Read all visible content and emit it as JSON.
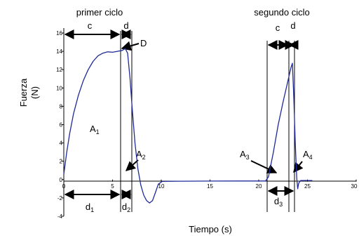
{
  "chart_data": {
    "type": "line",
    "title": "",
    "xlabel": "Tiempo (s)",
    "ylabel": "Fuerza",
    "ylabel_unit": "(N)",
    "xlim": [
      0,
      30
    ],
    "ylim": [
      -4,
      16
    ],
    "x_ticks": [
      0,
      5,
      10,
      15,
      20,
      25,
      30
    ],
    "y_ticks": [
      -4,
      -2,
      0,
      2,
      4,
      6,
      8,
      10,
      12,
      14,
      16
    ],
    "grid": false,
    "series": [
      {
        "color": "#1f2a9a",
        "points": [
          [
            0.0,
            0.6
          ],
          [
            0.3,
            3.0
          ],
          [
            0.6,
            5.0
          ],
          [
            1.0,
            7.2
          ],
          [
            1.5,
            9.2
          ],
          [
            2.0,
            10.8
          ],
          [
            2.5,
            12.0
          ],
          [
            3.0,
            12.9
          ],
          [
            3.5,
            13.5
          ],
          [
            4.0,
            13.8
          ],
          [
            4.5,
            13.95
          ],
          [
            5.0,
            13.9
          ],
          [
            5.5,
            14.0
          ],
          [
            6.0,
            14.1
          ],
          [
            6.3,
            14.3
          ],
          [
            6.55,
            13.8
          ],
          [
            6.8,
            11.0
          ],
          [
            7.0,
            8.0
          ],
          [
            7.3,
            4.0
          ],
          [
            7.6,
            1.2
          ],
          [
            7.9,
            -0.6
          ],
          [
            8.2,
            -1.7
          ],
          [
            8.5,
            -2.3
          ],
          [
            8.8,
            -2.55
          ],
          [
            9.1,
            -2.3
          ],
          [
            9.4,
            -1.4
          ],
          [
            9.7,
            -0.5
          ],
          [
            10.1,
            -0.2
          ],
          [
            12.0,
            -0.18
          ],
          [
            15.0,
            -0.16
          ],
          [
            18.0,
            -0.15
          ],
          [
            20.7,
            -0.15
          ],
          [
            21.0,
            0.3
          ],
          [
            21.5,
            3.0
          ],
          [
            22.0,
            6.0
          ],
          [
            22.5,
            8.5
          ],
          [
            23.0,
            10.8
          ],
          [
            23.3,
            12.2
          ],
          [
            23.45,
            12.7
          ],
          [
            23.6,
            9.0
          ],
          [
            23.75,
            4.0
          ],
          [
            23.9,
            0.2
          ],
          [
            24.0,
            -1.0
          ],
          [
            24.1,
            -0.4
          ],
          [
            24.3,
            -0.1
          ],
          [
            25.0,
            -0.1
          ],
          [
            25.5,
            -0.1
          ]
        ]
      }
    ],
    "phase_labels": [
      "primer ciclo",
      "segundo ciclo"
    ],
    "segment_labels": {
      "c1": "c",
      "d1": "d",
      "c2": "c",
      "d2": "d",
      "D": "D"
    },
    "area_labels": [
      {
        "base": "A",
        "sub": "1"
      },
      {
        "base": "A",
        "sub": "2"
      },
      {
        "base": "A",
        "sub": "3"
      },
      {
        "base": "A",
        "sub": "4"
      }
    ],
    "duration_labels": [
      {
        "base": "d",
        "sub": "1"
      },
      {
        "base": "d",
        "sub": "2"
      },
      {
        "base": "d",
        "sub": "3"
      }
    ]
  }
}
